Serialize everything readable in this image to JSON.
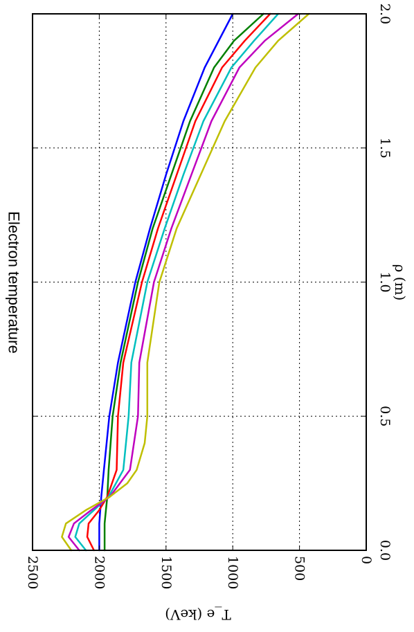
{
  "chart_data": {
    "type": "line",
    "title": "Electron temperature",
    "xlabel": "ρ (m)",
    "ylabel": "T_e (keV)",
    "xlim": [
      0.0,
      2.0
    ],
    "ylim": [
      0,
      2500
    ],
    "x_ticks": [
      "0.0",
      "0.5",
      "1.0",
      "1.5",
      "2.0"
    ],
    "y_ticks": [
      "0",
      "500",
      "1000",
      "1500",
      "2000",
      "2500"
    ],
    "grid": true,
    "orientation": "rotated 90 degrees clockwise",
    "series": [
      {
        "color": "#0000ff",
        "x": [
          0.0,
          0.05,
          0.1,
          0.2,
          0.3,
          0.5,
          0.7,
          1.0,
          1.2,
          1.4,
          1.6,
          1.8,
          2.0
        ],
        "y": [
          2000,
          2000,
          2000,
          1985,
          1965,
          1925,
          1860,
          1730,
          1620,
          1500,
          1370,
          1210,
          1000
        ]
      },
      {
        "color": "#008000",
        "x": [
          0.0,
          0.05,
          0.1,
          0.15,
          0.2,
          0.3,
          0.5,
          0.7,
          1.0,
          1.2,
          1.4,
          1.6,
          1.8,
          1.9,
          2.0
        ],
        "y": [
          1960,
          1960,
          1960,
          1950,
          1940,
          1930,
          1900,
          1840,
          1710,
          1600,
          1460,
          1320,
          1140,
          990,
          770
        ]
      },
      {
        "color": "#ff0000",
        "x": [
          0.0,
          0.05,
          0.1,
          0.15,
          0.2,
          0.3,
          0.5,
          0.7,
          1.0,
          1.2,
          1.4,
          1.6,
          1.8,
          1.9,
          2.0
        ],
        "y": [
          2040,
          2090,
          2080,
          2000,
          1940,
          1870,
          1860,
          1820,
          1680,
          1560,
          1420,
          1280,
          1080,
          910,
          720
        ]
      },
      {
        "color": "#00bfbf",
        "x": [
          0.0,
          0.05,
          0.1,
          0.15,
          0.2,
          0.3,
          0.5,
          0.7,
          1.0,
          1.2,
          1.4,
          1.6,
          1.8,
          1.9,
          2.0
        ],
        "y": [
          2100,
          2180,
          2150,
          2040,
          1930,
          1820,
          1780,
          1760,
          1640,
          1510,
          1370,
          1220,
          1010,
          840,
          660
        ]
      },
      {
        "color": "#bf00bf",
        "x": [
          0.0,
          0.05,
          0.1,
          0.15,
          0.2,
          0.3,
          0.5,
          0.7,
          1.0,
          1.2,
          1.4,
          1.6,
          1.8,
          1.9,
          2.0
        ],
        "y": [
          2150,
          2230,
          2190,
          2060,
          1920,
          1770,
          1710,
          1700,
          1590,
          1460,
          1310,
          1160,
          950,
          760,
          510
        ]
      },
      {
        "color": "#bfbf00",
        "x": [
          0.0,
          0.05,
          0.1,
          0.15,
          0.2,
          0.25,
          0.3,
          0.4,
          0.5,
          0.7,
          1.0,
          1.2,
          1.4,
          1.6,
          1.8,
          1.9,
          2.0
        ],
        "y": [
          2210,
          2280,
          2250,
          2100,
          1920,
          1790,
          1720,
          1660,
          1640,
          1640,
          1550,
          1420,
          1240,
          1060,
          830,
          660,
          430
        ]
      }
    ]
  }
}
